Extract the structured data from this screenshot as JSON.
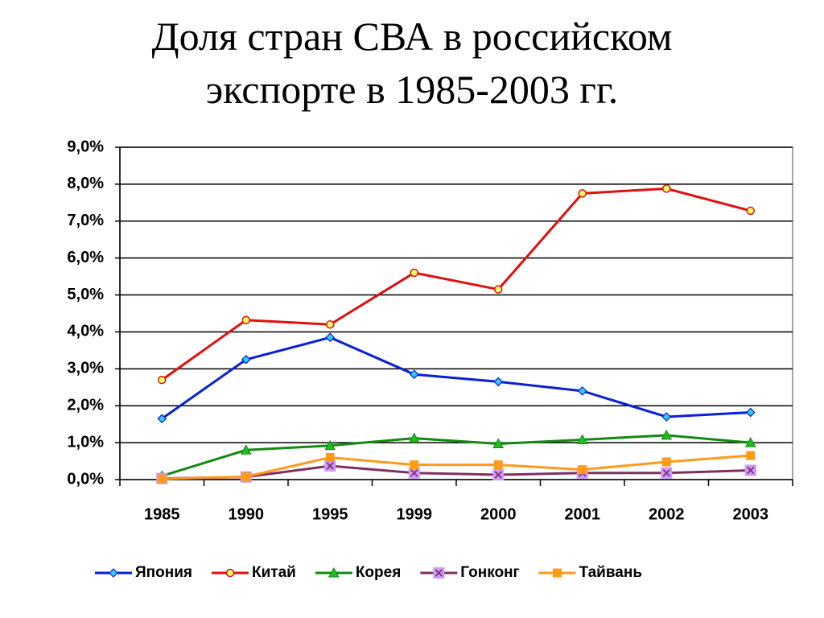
{
  "chart_data": {
    "type": "line",
    "title": [
      "Доля стран СВА в российском",
      "экспорте в  1985-2003 гг."
    ],
    "categories": [
      "1985",
      "1990",
      "1995",
      "1999",
      "2000",
      "2001",
      "2002",
      "2003"
    ],
    "ylim": [
      0,
      9
    ],
    "yticks": [
      {
        "value": 0,
        "label": "0,0%"
      },
      {
        "value": 1,
        "label": "1,0%"
      },
      {
        "value": 2,
        "label": "2,0%"
      },
      {
        "value": 3,
        "label": "3,0%"
      },
      {
        "value": 4,
        "label": "4,0%"
      },
      {
        "value": 5,
        "label": "5,0%"
      },
      {
        "value": 6,
        "label": "6,0%"
      },
      {
        "value": 7,
        "label": "7,0%"
      },
      {
        "value": 8,
        "label": "8,0%"
      },
      {
        "value": 9,
        "label": "9,0%"
      }
    ],
    "grid": true,
    "legend": "bottom",
    "series": [
      {
        "name": "Япония",
        "color": "#0a1fd6",
        "marker": "diamond",
        "marker_fill": "#33ccff",
        "values": [
          1.65,
          3.25,
          3.85,
          2.85,
          2.65,
          2.4,
          1.7,
          1.82
        ]
      },
      {
        "name": "Китай",
        "color": "#e01010",
        "marker": "circle",
        "marker_fill": "#ffff66",
        "values": [
          2.7,
          4.32,
          4.2,
          5.6,
          5.15,
          7.75,
          7.88,
          7.28
        ]
      },
      {
        "name": "Корея",
        "color": "#138a13",
        "marker": "triangle",
        "marker_fill": "#22bb22",
        "values": [
          0.1,
          0.8,
          0.92,
          1.12,
          0.97,
          1.08,
          1.2,
          1.0
        ]
      },
      {
        "name": "Гонконг",
        "color": "#80305f",
        "marker": "xsquare",
        "marker_fill": "#cc99ff",
        "values": [
          0.03,
          0.07,
          0.37,
          0.18,
          0.13,
          0.18,
          0.18,
          0.25
        ]
      },
      {
        "name": "Тайвань",
        "color": "#ff9a1a",
        "marker": "square",
        "marker_fill": "#ff9a1a",
        "values": [
          0.02,
          0.08,
          0.6,
          0.4,
          0.4,
          0.27,
          0.48,
          0.65
        ]
      }
    ]
  }
}
